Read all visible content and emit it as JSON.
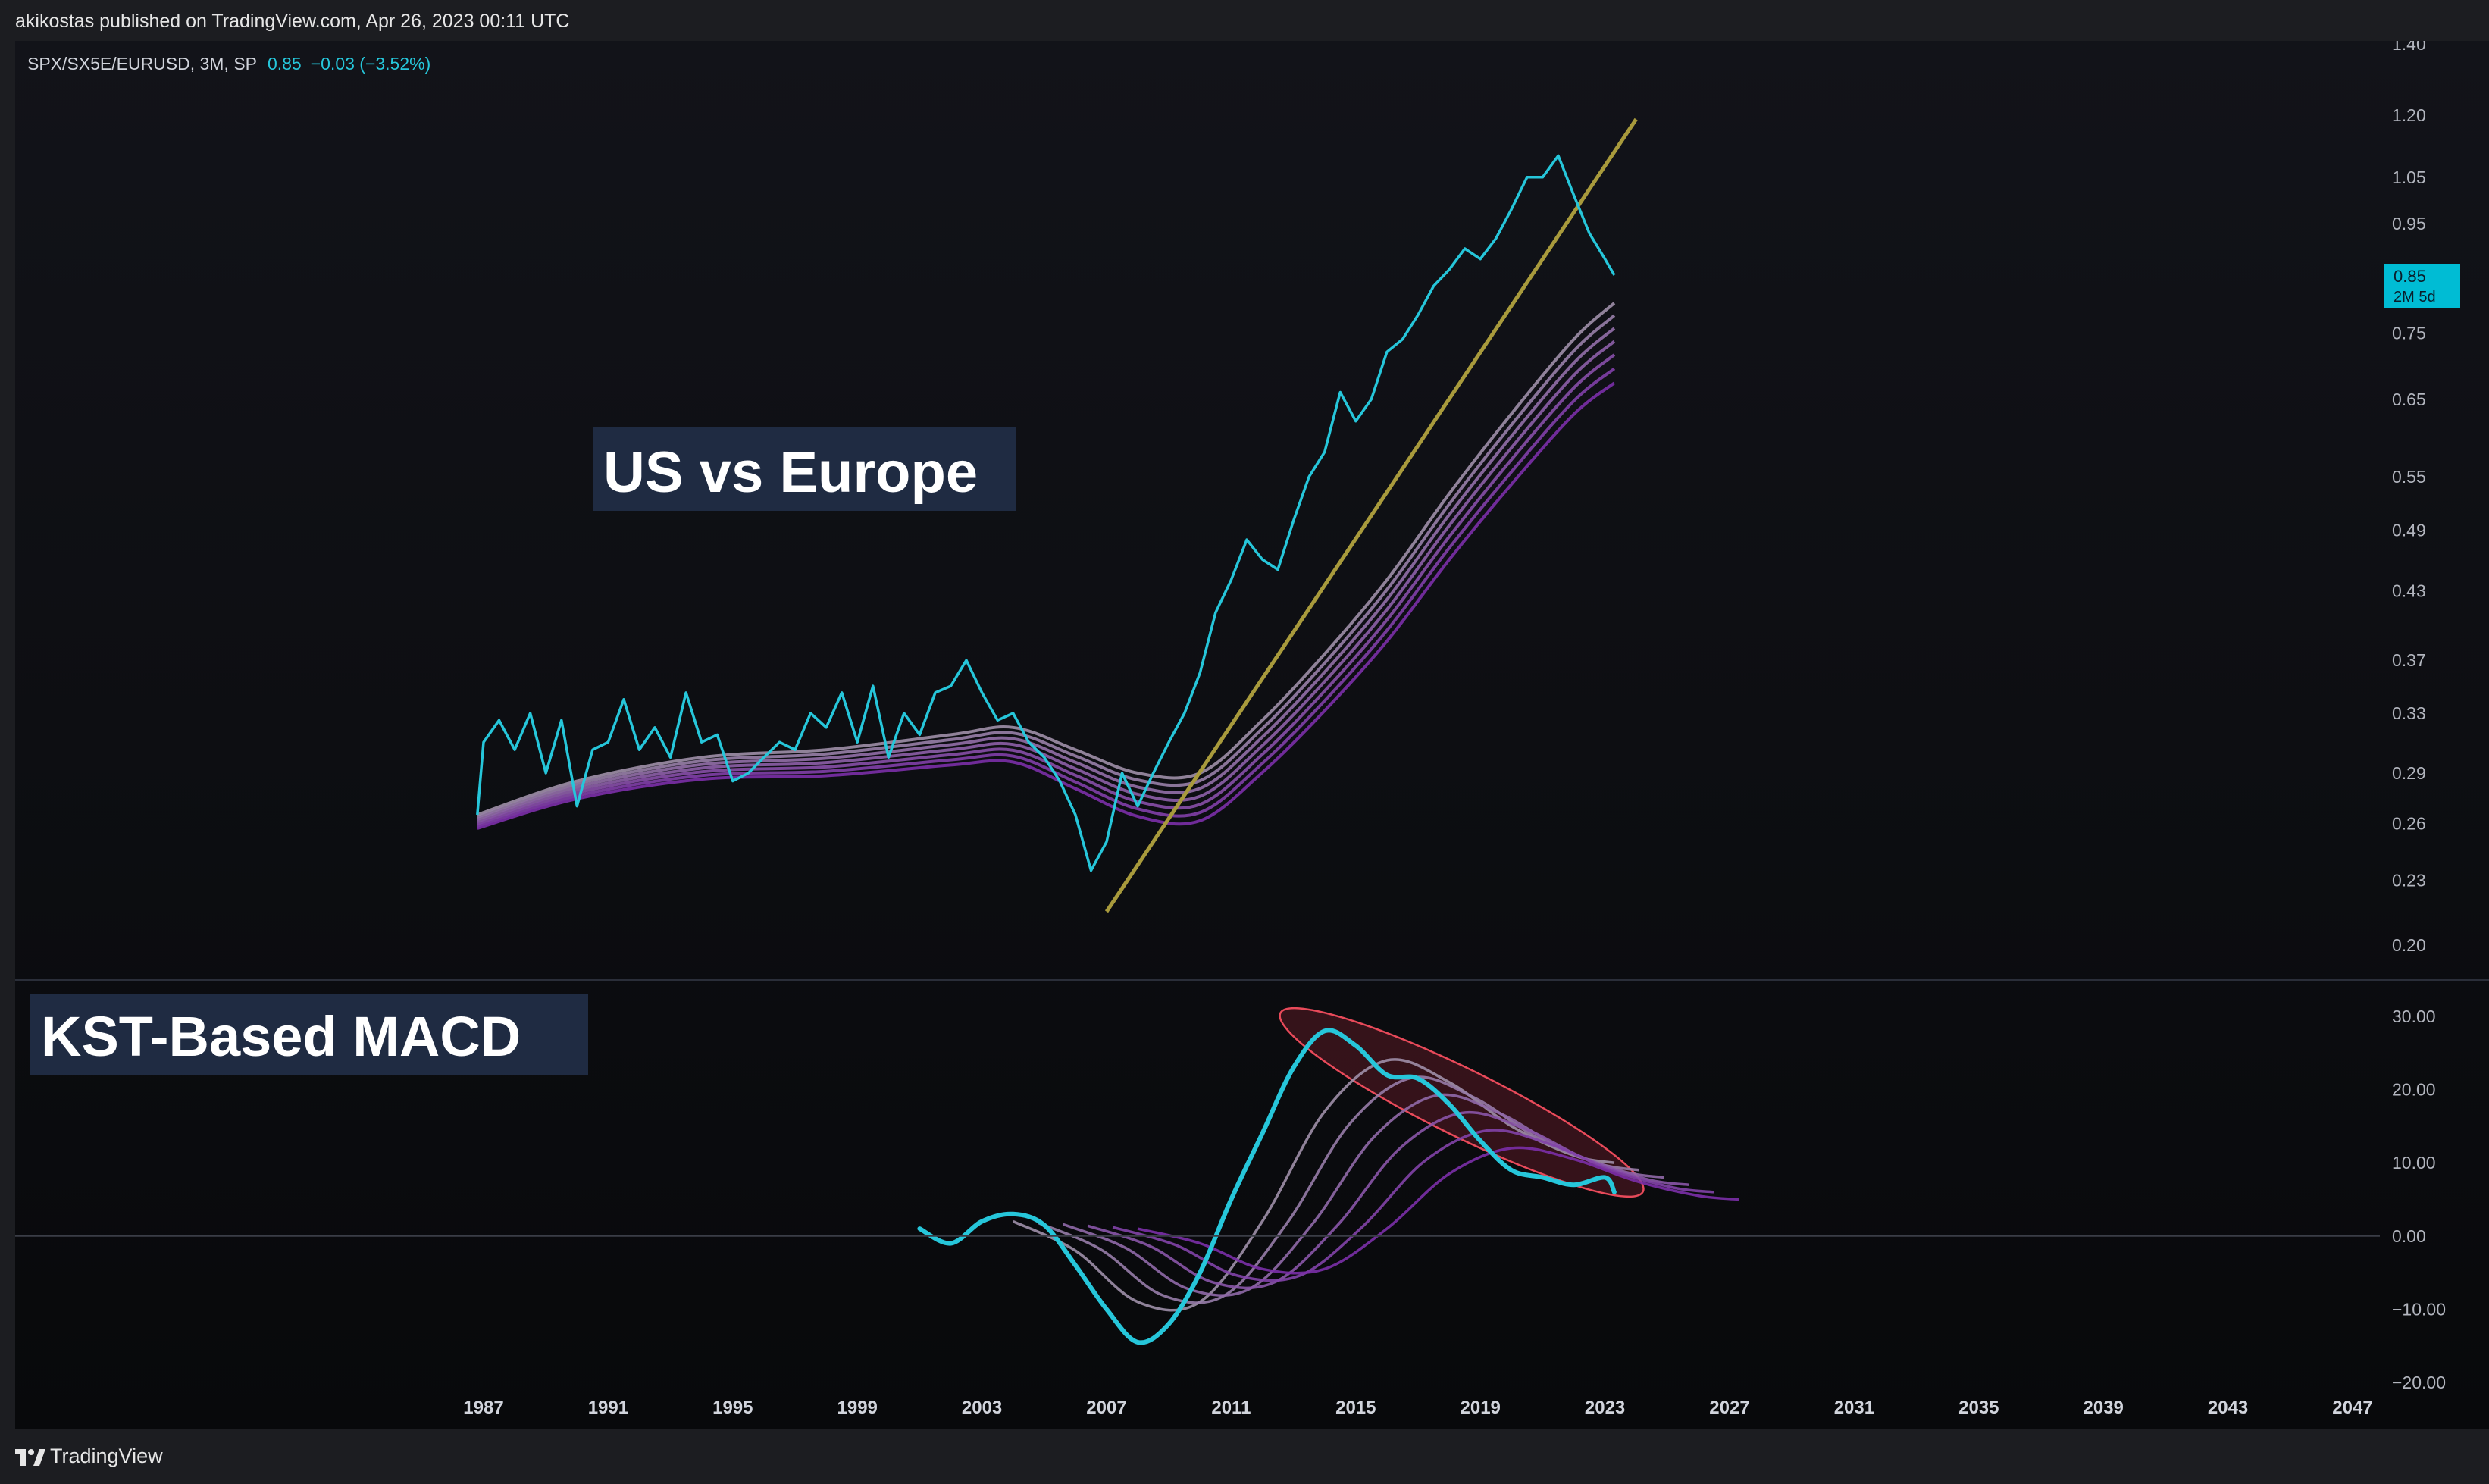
{
  "header": {
    "published": "akikostas published on TradingView.com, Apr 26, 2023 00:11 UTC"
  },
  "legend": {
    "symbol": "SPX/SX5E/EURUSD, 3M, SP",
    "value": "0.85",
    "change": "−0.03 (−3.52%)"
  },
  "price_badge": {
    "value": "0.85",
    "countdown": "2M 5d"
  },
  "annotations": {
    "top_title": "US vs Europe",
    "bottom_title": "KST-Based MACD"
  },
  "footer": {
    "brand": "TradingView"
  },
  "colors": {
    "price_line": "#26c6da",
    "trend_line": "#a89a3c",
    "ribbon_light": "#9e8fa8",
    "ribbon_dark": "#7b2fa8",
    "ellipse_stroke": "#e84a5a",
    "ellipse_fill": "#5a1a24",
    "label_bg": "#1f2b42"
  },
  "chart_data": [
    {
      "type": "line",
      "title": "SPX/SX5E/EURUSD, 3M, SP",
      "scale": "log",
      "ylim": [
        0.2,
        1.4
      ],
      "y_ticks": [
        "1.40",
        "1.20",
        "1.05",
        "0.95",
        "0.85",
        "0.75",
        "0.65",
        "0.55",
        "0.49",
        "0.43",
        "0.37",
        "0.33",
        "0.29",
        "0.26",
        "0.23",
        "0.20"
      ],
      "y_tick_values": [
        1.4,
        1.2,
        1.05,
        0.95,
        0.85,
        0.75,
        0.65,
        0.55,
        0.49,
        0.43,
        0.37,
        0.33,
        0.29,
        0.26,
        0.23,
        0.2
      ],
      "x_ticks": [
        "1987",
        "1991",
        "1995",
        "1999",
        "2003",
        "2007",
        "2011",
        "2015",
        "2019",
        "2023",
        "2027",
        "2031",
        "2035",
        "2039",
        "2043",
        "2047"
      ],
      "xlim": [
        1985.5,
        2048.5
      ],
      "series": [
        {
          "role": "price",
          "x": [
            1986.8,
            1987.0,
            1987.5,
            1988.0,
            1988.5,
            1989.0,
            1989.5,
            1990.0,
            1990.5,
            1991.0,
            1991.5,
            1992.0,
            1992.5,
            1993.0,
            1993.5,
            1994.0,
            1994.5,
            1995.0,
            1995.5,
            1996.0,
            1996.5,
            1997.0,
            1997.5,
            1998.0,
            1998.5,
            1999.0,
            1999.5,
            2000.0,
            2000.5,
            2001.0,
            2001.5,
            2002.0,
            2002.5,
            2003.0,
            2003.5,
            2004.0,
            2004.5,
            2005.0,
            2005.5,
            2006.0,
            2006.5,
            2007.0,
            2007.5,
            2008.0,
            2008.5,
            2009.0,
            2009.5,
            2010.0,
            2010.5,
            2011.0,
            2011.5,
            2012.0,
            2012.5,
            2013.0,
            2013.5,
            2014.0,
            2014.5,
            2015.0,
            2015.5,
            2016.0,
            2016.5,
            2017.0,
            2017.5,
            2018.0,
            2018.5,
            2019.0,
            2019.5,
            2020.0,
            2020.5,
            2021.0,
            2021.5,
            2022.0,
            2022.5,
            2023.0,
            2023.3
          ],
          "y": [
            0.265,
            0.31,
            0.325,
            0.305,
            0.33,
            0.29,
            0.325,
            0.27,
            0.305,
            0.31,
            0.34,
            0.305,
            0.32,
            0.3,
            0.345,
            0.31,
            0.315,
            0.285,
            0.29,
            0.3,
            0.31,
            0.305,
            0.33,
            0.32,
            0.345,
            0.31,
            0.35,
            0.3,
            0.33,
            0.315,
            0.345,
            0.35,
            0.37,
            0.345,
            0.325,
            0.33,
            0.31,
            0.3,
            0.285,
            0.265,
            0.235,
            0.25,
            0.29,
            0.27,
            0.29,
            0.31,
            0.33,
            0.36,
            0.41,
            0.44,
            0.48,
            0.46,
            0.45,
            0.5,
            0.55,
            0.58,
            0.66,
            0.62,
            0.65,
            0.72,
            0.74,
            0.78,
            0.83,
            0.86,
            0.9,
            0.88,
            0.92,
            0.98,
            1.05,
            1.05,
            1.1,
            1.01,
            0.93,
            0.88,
            0.85
          ]
        },
        {
          "role": "trendline",
          "x": [
            2007.0,
            2024.0
          ],
          "y": [
            0.215,
            1.19
          ]
        },
        {
          "role": "ribbon_base",
          "x": [
            1986.8,
            1990.0,
            1994.0,
            1998.0,
            2002.0,
            2004.0,
            2006.0,
            2008.0,
            2010.0,
            2012.0,
            2014.0,
            2016.0,
            2018.0,
            2020.0,
            2022.0,
            2023.3
          ],
          "y": [
            0.265,
            0.285,
            0.3,
            0.305,
            0.315,
            0.32,
            0.305,
            0.29,
            0.29,
            0.325,
            0.375,
            0.44,
            0.53,
            0.63,
            0.74,
            0.8
          ],
          "offsets": [
            0,
            -0.012,
            -0.024,
            -0.036,
            -0.048,
            -0.06,
            -0.072
          ]
        }
      ]
    },
    {
      "type": "line",
      "title": "KST-Based MACD",
      "ylim": [
        -20,
        30
      ],
      "y_ticks": [
        "30.00",
        "20.00",
        "10.00",
        "0.00",
        "−10.00",
        "−20.00"
      ],
      "y_tick_values": [
        30,
        20,
        10,
        0,
        -10,
        -20
      ],
      "series": [
        {
          "role": "macd",
          "x": [
            2001.0,
            2002.0,
            2003.0,
            2004.0,
            2005.0,
            2006.0,
            2007.0,
            2008.0,
            2009.0,
            2010.0,
            2011.0,
            2012.0,
            2013.0,
            2014.0,
            2015.0,
            2016.0,
            2017.0,
            2018.0,
            2019.0,
            2020.0,
            2021.0,
            2022.0,
            2023.0,
            2023.3
          ],
          "y": [
            1.0,
            -1.0,
            2.0,
            3.0,
            1.5,
            -4.0,
            -10.0,
            -14.5,
            -12.0,
            -5.0,
            5.0,
            14.0,
            23.0,
            28.0,
            26.0,
            22.0,
            21.5,
            18.0,
            13.0,
            9.0,
            8.0,
            7.0,
            8.0,
            6.0
          ]
        },
        {
          "role": "signal_ribbon",
          "x": [
            2004.0,
            2006.0,
            2008.0,
            2010.0,
            2012.0,
            2014.0,
            2016.0,
            2018.0,
            2020.0,
            2022.0,
            2023.3
          ],
          "y": [
            2.0,
            -2.0,
            -9.0,
            -9.0,
            2.0,
            17.0,
            24.0,
            21.0,
            15.0,
            11.0,
            10.0
          ],
          "lags": [
            0,
            0.8,
            1.6,
            2.4,
            3.2,
            4.0
          ],
          "scales": [
            1.0,
            0.9,
            0.8,
            0.7,
            0.6,
            0.5
          ]
        }
      ],
      "annotation_ellipse": {
        "x_range": [
          2012.8,
          2024.0
        ],
        "y_range": [
          6.5,
          30.0
        ]
      }
    }
  ]
}
